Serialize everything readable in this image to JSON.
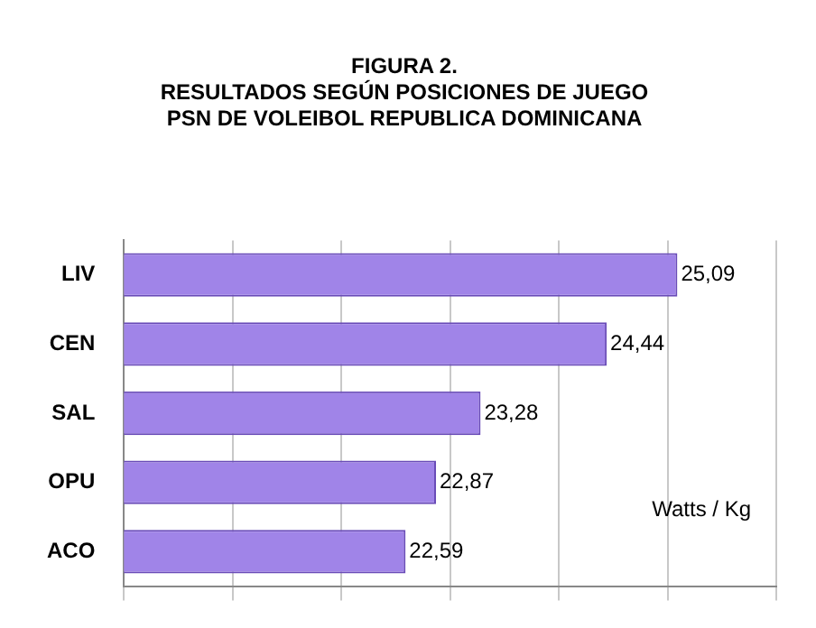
{
  "chart_data": {
    "type": "bar",
    "orientation": "horizontal",
    "title": "FIGURA 2.\nRESULTADOS SEGÚN POSICIONES DE JUEGO\nPSN DE VOLEIBOL REPUBLICA DOMINICANA",
    "categories": [
      "LIV",
      "CEN",
      "SAL",
      "OPU",
      "ACO"
    ],
    "values": [
      25.09,
      24.44,
      23.28,
      22.87,
      22.59
    ],
    "value_labels": [
      "25,09",
      "24,44",
      "23,28",
      "22,87",
      "22,59"
    ],
    "color": "#a084e8",
    "xlim": [
      20,
      26
    ],
    "xticks": [
      {
        "value": 20,
        "label": null
      },
      {
        "value": 21,
        "label": null
      },
      {
        "value": 22,
        "label": null
      },
      {
        "value": 23,
        "label": null
      },
      {
        "value": 24,
        "label": null
      },
      {
        "value": 25,
        "label": null
      },
      {
        "value": 26,
        "label": null
      }
    ],
    "tick_labels": "y",
    "grid": "x",
    "legend": false,
    "annotations": [
      "Watts / Kg"
    ]
  }
}
